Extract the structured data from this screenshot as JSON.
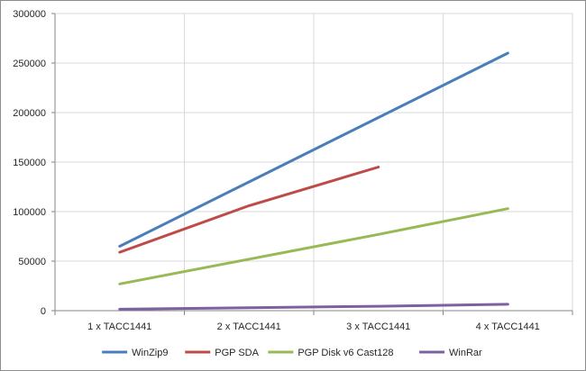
{
  "chart_data": {
    "type": "line",
    "categories": [
      "1 x TACC1441",
      "2 x TACC1441",
      "3 x TACC1441",
      "4 x TACC1441"
    ],
    "ylim": [
      0,
      300000
    ],
    "yticks": [
      0,
      50000,
      100000,
      150000,
      200000,
      250000,
      300000
    ],
    "grid": true,
    "legend_position": "bottom",
    "series": [
      {
        "name": "WinZip9",
        "color": "#4a7ebb",
        "values": [
          65000,
          130000,
          195000,
          260000
        ]
      },
      {
        "name": "PGP SDA",
        "color": "#be4b48",
        "values": [
          59000,
          106000,
          145000,
          null
        ]
      },
      {
        "name": "PGP Disk v6 Cast128",
        "color": "#98b954",
        "values": [
          27000,
          52000,
          77000,
          103000
        ]
      },
      {
        "name": "WinRar",
        "color": "#7d60a0",
        "values": [
          1500,
          3000,
          4500,
          6500
        ]
      }
    ]
  }
}
